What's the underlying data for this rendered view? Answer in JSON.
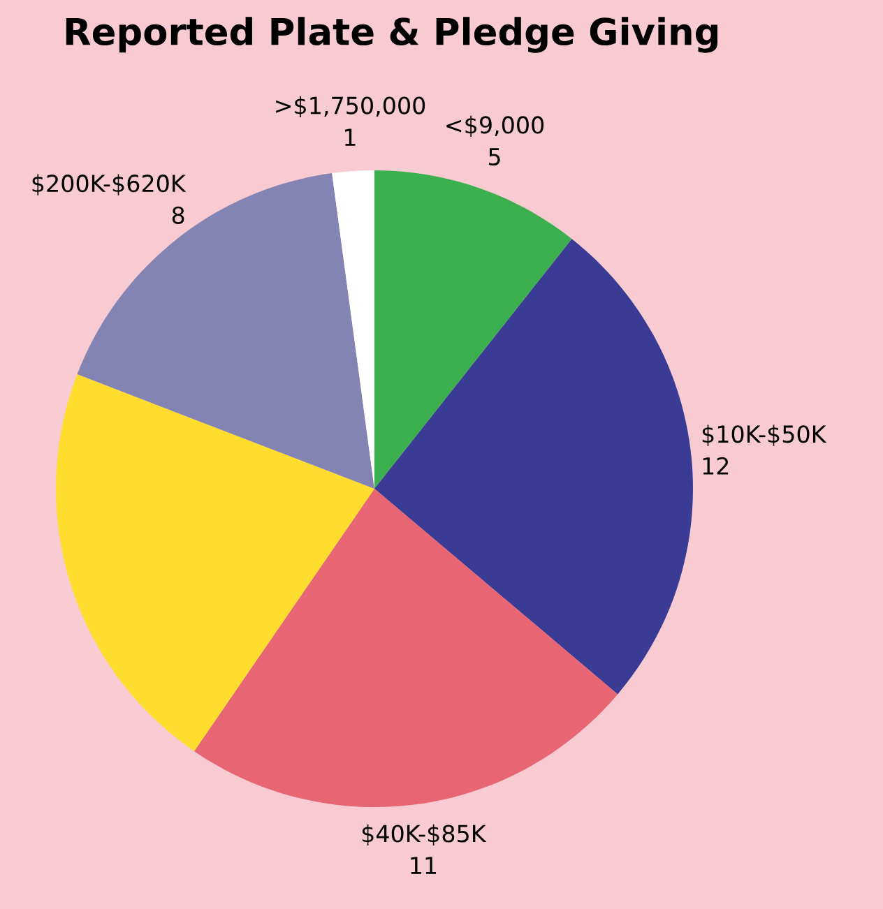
{
  "chart_data": {
    "type": "pie",
    "title": "Reported Plate & Pledge Giving",
    "categories": [
      "<$9,000",
      "$10K-$50K",
      "$40K-$85K",
      null,
      "$200K-$620K",
      ">$1,750,000"
    ],
    "values": [
      5,
      12,
      11,
      10,
      8,
      1
    ],
    "value_labels": [
      "5",
      "12",
      "11",
      null,
      "8",
      "1"
    ],
    "colors": [
      "#3cb04e",
      "#3a3b94",
      "#e86674",
      "#fedd2f",
      "#8484b4",
      "#ffffff"
    ],
    "legend": false
  }
}
